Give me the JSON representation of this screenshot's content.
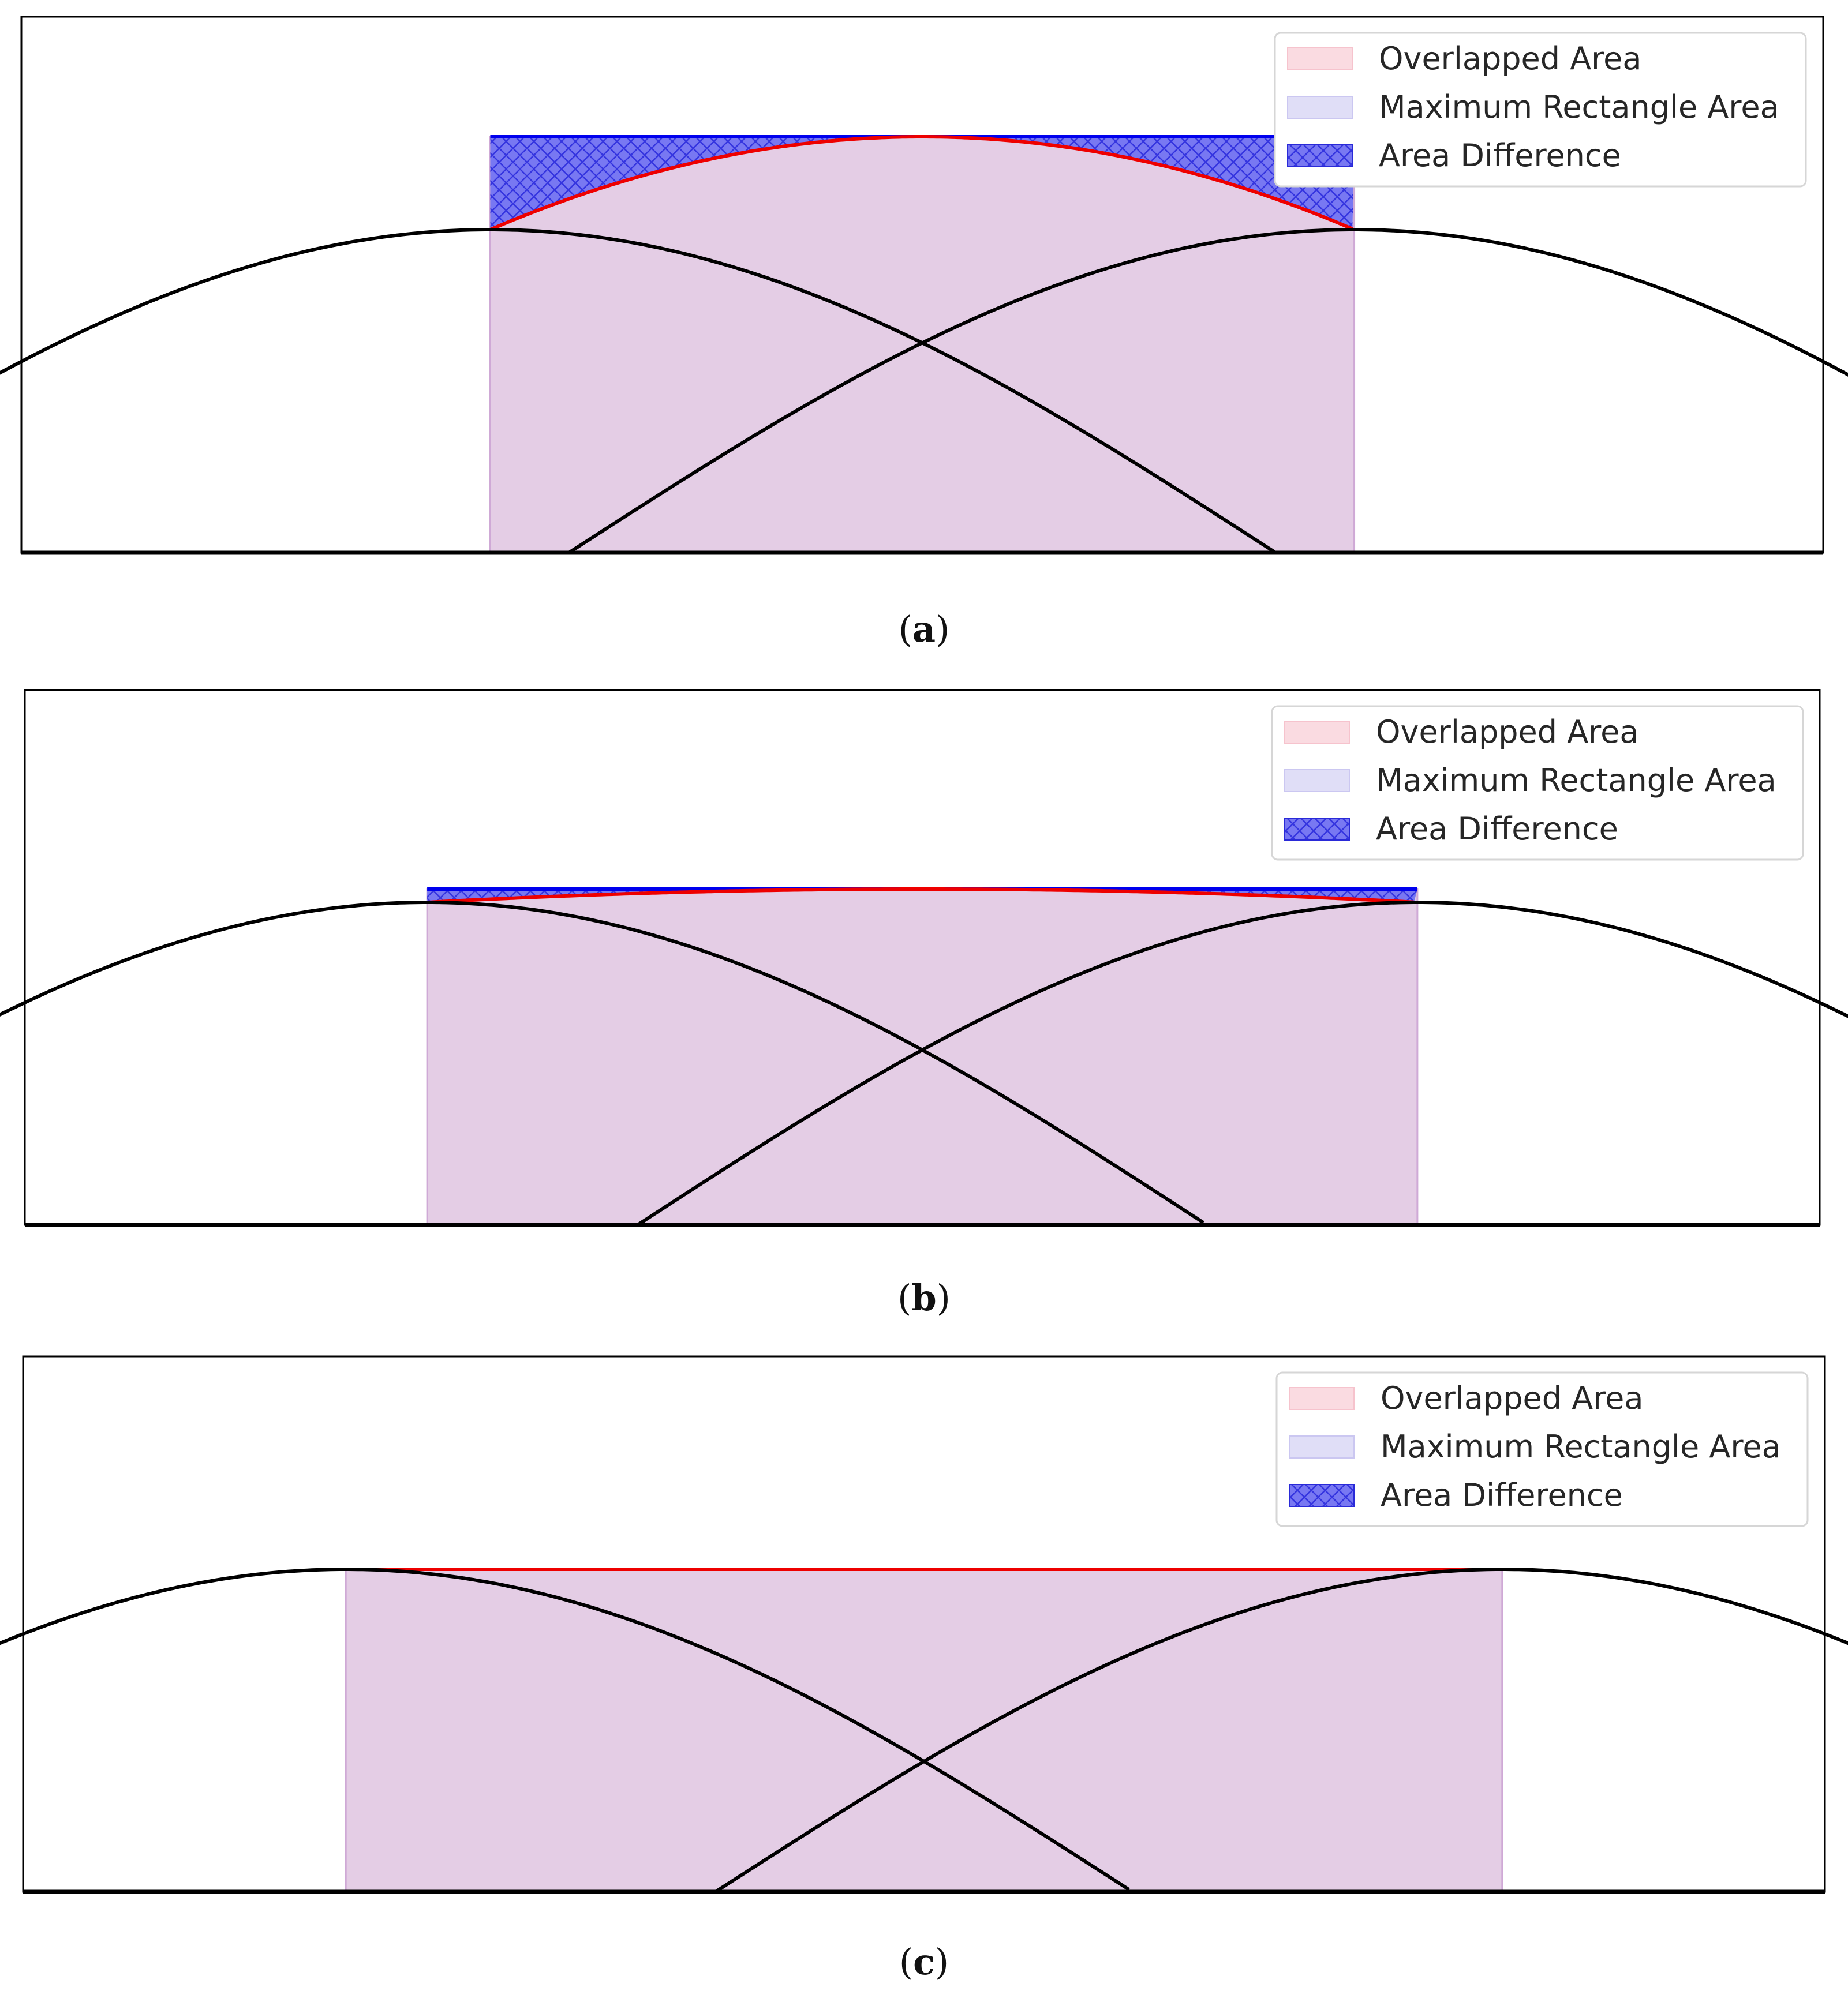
{
  "legend": {
    "overlap": "Overlapped Area",
    "rectangle": "Maximum Rectangle Area",
    "difference": "Area Difference"
  },
  "colors": {
    "overlap_fill": "#f7d3dc",
    "overlap_stroke": "#f3b7c4",
    "rectangle_fill": "#dcd9f5",
    "rectangle_stroke": "#c4c0ee",
    "combined_fill": "#e4cde5",
    "combined_stroke": "#cfa9d6",
    "difference_fill": "#7777f2",
    "difference_hatch": "#3535e0",
    "max_line": "#0000ee",
    "overlap_boundary": "#ee0000",
    "curve": "#000000",
    "frame": "#000000"
  },
  "panels": [
    {
      "id": "a",
      "label_open": "(",
      "label_letter": "a",
      "label_close": ")",
      "peak_sep": 0.55
    },
    {
      "id": "b",
      "label_open": "(",
      "label_letter": "b",
      "label_close": ")",
      "peak_sep": 0.635
    },
    {
      "id": "c",
      "label_open": "(",
      "label_letter": "c",
      "label_close": ")",
      "peak_sep": 0.735
    }
  ]
}
